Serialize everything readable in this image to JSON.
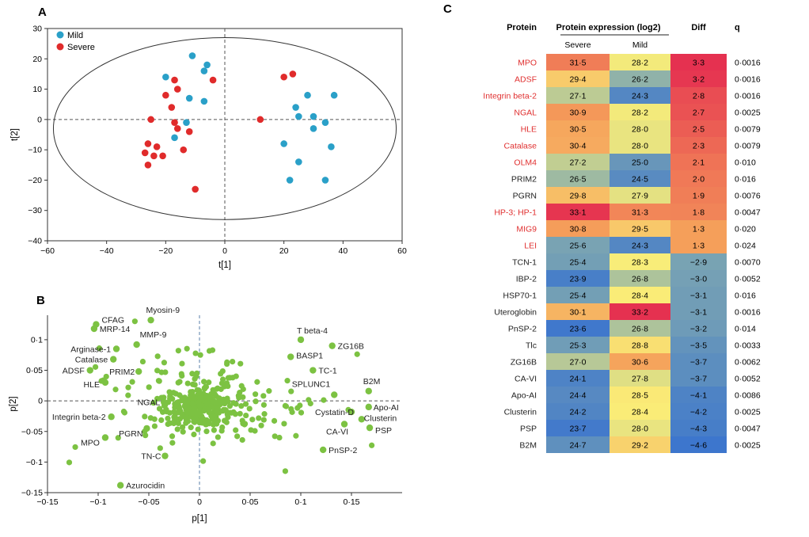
{
  "panel_labels": {
    "a": "A",
    "b": "B",
    "c": "C"
  },
  "colors": {
    "mild": "#2aa0c8",
    "severe": "#e02b2b",
    "green": "#7cc242",
    "axis": "#333333",
    "red_text": "#e03030"
  },
  "chart_data": [
    {
      "type": "scatter",
      "id": "A",
      "xlabel": "t[1]",
      "ylabel": "t[2]",
      "xlim": [
        -60,
        60
      ],
      "ylim": [
        -40,
        30
      ],
      "xticks": [
        -60,
        -40,
        -20,
        0,
        20,
        40,
        60
      ],
      "yticks": [
        -40,
        -30,
        -20,
        -10,
        0,
        10,
        20,
        30
      ],
      "legend": [
        "Mild",
        "Severe"
      ],
      "ellipse": {
        "cx": 0,
        "cy": -3,
        "rx": 58,
        "ry": 30
      },
      "series": [
        {
          "name": "Mild",
          "points": [
            [
              -11,
              21
            ],
            [
              -6,
              18
            ],
            [
              -7,
              16
            ],
            [
              -20,
              14
            ],
            [
              -12,
              7
            ],
            [
              -7,
              6
            ],
            [
              -13,
              -1
            ],
            [
              -17,
              -6
            ],
            [
              28,
              8
            ],
            [
              37,
              8
            ],
            [
              24,
              4
            ],
            [
              25,
              1
            ],
            [
              30,
              1
            ],
            [
              34,
              -1
            ],
            [
              30,
              -3
            ],
            [
              20,
              -8
            ],
            [
              36,
              -9
            ],
            [
              25,
              -14
            ],
            [
              22,
              -20
            ],
            [
              34,
              -20
            ]
          ]
        },
        {
          "name": "Severe",
          "points": [
            [
              -17,
              13
            ],
            [
              -4,
              13
            ],
            [
              -16,
              10
            ],
            [
              -20,
              8
            ],
            [
              -18,
              4
            ],
            [
              -25,
              0
            ],
            [
              -17,
              -1
            ],
            [
              -16,
              -3
            ],
            [
              -12,
              -4
            ],
            [
              -26,
              -8
            ],
            [
              -23,
              -9
            ],
            [
              -14,
              -10
            ],
            [
              -27,
              -11
            ],
            [
              -24,
              -12
            ],
            [
              -21,
              -12
            ],
            [
              -26,
              -15
            ],
            [
              -10,
              -23
            ],
            [
              20,
              14
            ],
            [
              23,
              15
            ],
            [
              12,
              0
            ]
          ]
        }
      ]
    },
    {
      "type": "scatter",
      "id": "B",
      "xlabel": "p[1]",
      "ylabel": "p[2]",
      "xlim": [
        -0.15,
        0.2
      ],
      "ylim": [
        -0.15,
        0.14
      ],
      "xticks": [
        -0.15,
        -0.1,
        -0.05,
        0,
        0.05,
        0.1,
        0.15
      ],
      "xtick_labels": [
        "−0·15",
        "−0·1",
        "−0·05",
        "0",
        "0·05",
        "0·1",
        "0·15"
      ],
      "yticks": [
        -0.15,
        -0.1,
        -0.05,
        0,
        0.05,
        0.1
      ],
      "ytick_labels": [
        "−0·15",
        "−0·1",
        "−0·05",
        "0",
        "0·05",
        "0·1"
      ],
      "labeled_points": [
        {
          "label": "CFAG",
          "x": -0.102,
          "y": 0.125
        },
        {
          "label": "MRP-14",
          "x": -0.104,
          "y": 0.118
        },
        {
          "label": "Myosin-9",
          "x": -0.048,
          "y": 0.132
        },
        {
          "label": "MMP-9",
          "x": -0.062,
          "y": 0.092
        },
        {
          "label": "Arginase-1",
          "x": -0.082,
          "y": 0.085
        },
        {
          "label": "Catalase",
          "x": -0.085,
          "y": 0.068
        },
        {
          "label": "ADSF",
          "x": -0.108,
          "y": 0.05
        },
        {
          "label": "PRIM2",
          "x": -0.06,
          "y": 0.048
        },
        {
          "label": "HLE",
          "x": -0.093,
          "y": 0.03
        },
        {
          "label": "NGAL",
          "x": -0.035,
          "y": -0.002
        },
        {
          "label": "Integrin beta-2",
          "x": -0.087,
          "y": -0.026
        },
        {
          "label": "PGRN",
          "x": -0.052,
          "y": -0.045
        },
        {
          "label": "MPO",
          "x": -0.093,
          "y": -0.06
        },
        {
          "label": "TN-C",
          "x": -0.034,
          "y": -0.09
        },
        {
          "label": "Azurocidin",
          "x": -0.078,
          "y": -0.138
        },
        {
          "label": "T beta-4",
          "x": 0.1,
          "y": 0.1
        },
        {
          "label": "ZG16B",
          "x": 0.131,
          "y": 0.09
        },
        {
          "label": "BASP1",
          "x": 0.09,
          "y": 0.072
        },
        {
          "label": "TC-1",
          "x": 0.112,
          "y": 0.05
        },
        {
          "label": "B2M",
          "x": 0.167,
          "y": 0.016
        },
        {
          "label": "SPLUNC1",
          "x": 0.133,
          "y": 0.01
        },
        {
          "label": "Cystatin-D",
          "x": 0.15,
          "y": -0.018
        },
        {
          "label": "Apo-AI",
          "x": 0.167,
          "y": -0.01
        },
        {
          "label": "Clusterin",
          "x": 0.16,
          "y": -0.03
        },
        {
          "label": "PSP",
          "x": 0.168,
          "y": -0.044
        },
        {
          "label": "CA-VI",
          "x": 0.143,
          "y": -0.038
        },
        {
          "label": "PnSP-2",
          "x": 0.122,
          "y": -0.08
        }
      ]
    },
    {
      "type": "table",
      "id": "C",
      "headers": {
        "protein": "Protein",
        "expression": "Protein expression (log2)",
        "severe": "Severe",
        "mild": "Mild",
        "diff": "Diff",
        "q": "q"
      },
      "rows": [
        {
          "protein": "MPO",
          "severe": "31·5",
          "mild": "28·2",
          "diff": "3·3",
          "q": "0·0016",
          "highlight": true,
          "sev": 31.5,
          "mil": 28.2,
          "dif": 3.3
        },
        {
          "protein": "ADSF",
          "severe": "29·4",
          "mild": "26·2",
          "diff": "3·2",
          "q": "0·0016",
          "highlight": true,
          "sev": 29.4,
          "mil": 26.2,
          "dif": 3.2
        },
        {
          "protein": "Integrin beta-2",
          "severe": "27·1",
          "mild": "24·3",
          "diff": "2·8",
          "q": "0·0016",
          "highlight": true,
          "sev": 27.1,
          "mil": 24.3,
          "dif": 2.8
        },
        {
          "protein": "NGAL",
          "severe": "30·9",
          "mild": "28·2",
          "diff": "2·7",
          "q": "0·0025",
          "highlight": true,
          "sev": 30.9,
          "mil": 28.2,
          "dif": 2.7
        },
        {
          "protein": "HLE",
          "severe": "30·5",
          "mild": "28·0",
          "diff": "2·5",
          "q": "0·0079",
          "highlight": true,
          "sev": 30.5,
          "mil": 28.0,
          "dif": 2.5
        },
        {
          "protein": "Catalase",
          "severe": "30·4",
          "mild": "28·0",
          "diff": "2·3",
          "q": "0·0079",
          "highlight": true,
          "sev": 30.4,
          "mil": 28.0,
          "dif": 2.3
        },
        {
          "protein": "OLM4",
          "severe": "27·2",
          "mild": "25·0",
          "diff": "2·1",
          "q": "0·010",
          "highlight": true,
          "sev": 27.2,
          "mil": 25.0,
          "dif": 2.1
        },
        {
          "protein": "PRIM2",
          "severe": "26·5",
          "mild": "24·5",
          "diff": "2·0",
          "q": "0·016",
          "highlight": false,
          "sev": 26.5,
          "mil": 24.5,
          "dif": 2.0
        },
        {
          "protein": "PGRN",
          "severe": "29·8",
          "mild": "27·9",
          "diff": "1·9",
          "q": "0·0076",
          "highlight": false,
          "sev": 29.8,
          "mil": 27.9,
          "dif": 1.9
        },
        {
          "protein": "HP-3; HP-1",
          "severe": "33·1",
          "mild": "31·3",
          "diff": "1·8",
          "q": "0·0047",
          "highlight": true,
          "sev": 33.1,
          "mil": 31.3,
          "dif": 1.8
        },
        {
          "protein": "MIG9",
          "severe": "30·8",
          "mild": "29·5",
          "diff": "1·3",
          "q": "0·020",
          "highlight": true,
          "sev": 30.8,
          "mil": 29.5,
          "dif": 1.3
        },
        {
          "protein": "LEI",
          "severe": "25·6",
          "mild": "24·3",
          "diff": "1·3",
          "q": "0·024",
          "highlight": true,
          "sev": 25.6,
          "mil": 24.3,
          "dif": 1.3
        },
        {
          "protein": "TCN-1",
          "severe": "25·4",
          "mild": "28·3",
          "diff": "−2·9",
          "q": "0·0070",
          "highlight": false,
          "sev": 25.4,
          "mil": 28.3,
          "dif": -2.9
        },
        {
          "protein": "IBP-2",
          "severe": "23·9",
          "mild": "26·8",
          "diff": "−3·0",
          "q": "0·0052",
          "highlight": false,
          "sev": 23.9,
          "mil": 26.8,
          "dif": -3.0
        },
        {
          "protein": "HSP70-1",
          "severe": "25·4",
          "mild": "28·4",
          "diff": "−3·1",
          "q": "0·016",
          "highlight": false,
          "sev": 25.4,
          "mil": 28.4,
          "dif": -3.1
        },
        {
          "protein": "Uteroglobin",
          "severe": "30·1",
          "mild": "33·2",
          "diff": "−3·1",
          "q": "0·0016",
          "highlight": false,
          "sev": 30.1,
          "mil": 33.2,
          "dif": -3.1
        },
        {
          "protein": "PnSP-2",
          "severe": "23·6",
          "mild": "26·8",
          "diff": "−3·2",
          "q": "0·014",
          "highlight": false,
          "sev": 23.6,
          "mil": 26.8,
          "dif": -3.2
        },
        {
          "protein": "Tlc",
          "severe": "25·3",
          "mild": "28·8",
          "diff": "−3·5",
          "q": "0·0033",
          "highlight": false,
          "sev": 25.3,
          "mil": 28.8,
          "dif": -3.5
        },
        {
          "protein": "ZG16B",
          "severe": "27·0",
          "mild": "30·6",
          "diff": "−3·7",
          "q": "0·0062",
          "highlight": false,
          "sev": 27.0,
          "mil": 30.6,
          "dif": -3.7
        },
        {
          "protein": "CA-VI",
          "severe": "24·1",
          "mild": "27·8",
          "diff": "−3·7",
          "q": "0·0052",
          "highlight": false,
          "sev": 24.1,
          "mil": 27.8,
          "dif": -3.7
        },
        {
          "protein": "Apo-AI",
          "severe": "24·4",
          "mild": "28·5",
          "diff": "−4·1",
          "q": "0·0086",
          "highlight": false,
          "sev": 24.4,
          "mil": 28.5,
          "dif": -4.1
        },
        {
          "protein": "Clusterin",
          "severe": "24·2",
          "mild": "28·4",
          "diff": "−4·2",
          "q": "0·0025",
          "highlight": false,
          "sev": 24.2,
          "mil": 28.4,
          "dif": -4.2
        },
        {
          "protein": "PSP",
          "severe": "23·7",
          "mild": "28·0",
          "diff": "−4·3",
          "q": "0·0047",
          "highlight": false,
          "sev": 23.7,
          "mil": 28.0,
          "dif": -4.3
        },
        {
          "protein": "B2M",
          "severe": "24·7",
          "mild": "29·2",
          "diff": "−4·6",
          "q": "0·0025",
          "highlight": false,
          "sev": 24.7,
          "mil": 29.2,
          "dif": -4.6
        }
      ]
    }
  ]
}
